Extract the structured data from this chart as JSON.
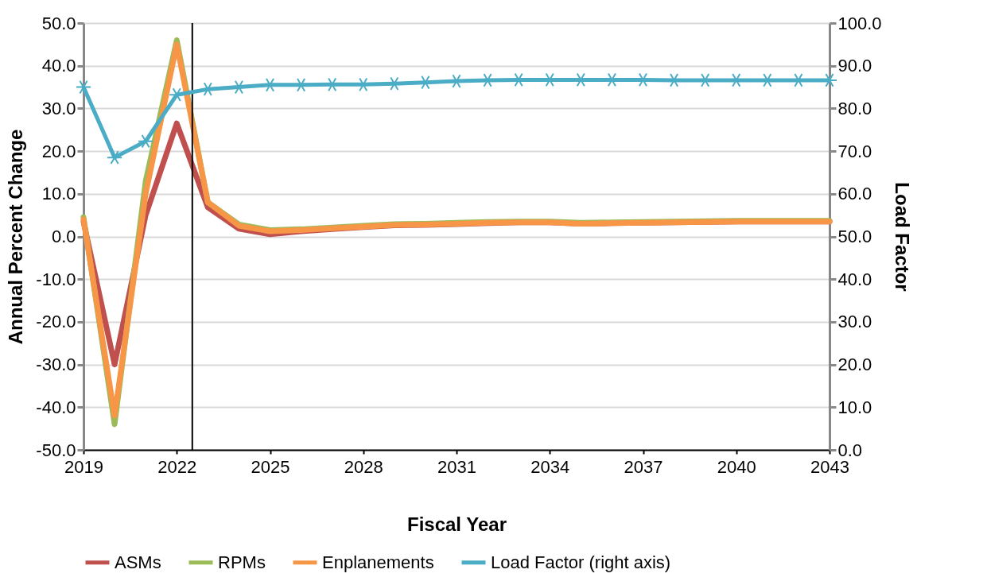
{
  "chart_data": {
    "type": "line",
    "xlabel": "Fiscal Year",
    "ylabel": "Annual Percent Change",
    "y2label": "Load Factor",
    "x": [
      2019,
      2020,
      2021,
      2022,
      2023,
      2024,
      2025,
      2026,
      2027,
      2028,
      2029,
      2030,
      2031,
      2032,
      2033,
      2034,
      2035,
      2036,
      2037,
      2038,
      2039,
      2040,
      2041,
      2042,
      2043
    ],
    "series": [
      {
        "name": "ASMs",
        "color": "#c0504d",
        "values": [
          3.5,
          -30,
          5,
          26.5,
          6.8,
          1.8,
          0.5,
          1.2,
          1.7,
          2.2,
          2.6,
          2.7,
          2.9,
          3.1,
          3.3,
          3.3,
          3.0,
          3.1,
          3.2,
          3.3,
          3.4,
          3.5,
          3.5,
          3.5,
          3.5
        ]
      },
      {
        "name": "RPMs",
        "color": "#9bbb59",
        "values": [
          4.5,
          -44,
          13,
          46,
          8,
          2.8,
          1.5,
          1.7,
          2.1,
          2.5,
          2.9,
          3.0,
          3.2,
          3.4,
          3.5,
          3.5,
          3.2,
          3.3,
          3.4,
          3.5,
          3.6,
          3.7,
          3.7,
          3.7,
          3.7
        ]
      },
      {
        "name": "Enplanements",
        "color": "#f79646",
        "values": [
          4,
          -42,
          10,
          45,
          8,
          2.5,
          1.2,
          1.5,
          1.9,
          2.3,
          2.7,
          2.8,
          3.0,
          3.2,
          3.3,
          3.3,
          3.0,
          3.1,
          3.2,
          3.3,
          3.4,
          3.5,
          3.5,
          3.5,
          3.5
        ]
      },
      {
        "name": "Load Factor (right axis)",
        "color": "#4bacc6",
        "axis": "y2",
        "marker": "cross",
        "values": [
          85,
          68.5,
          72.3,
          83.2,
          84.5,
          85,
          85.5,
          85.5,
          85.6,
          85.6,
          85.8,
          86.1,
          86.4,
          86.6,
          86.7,
          86.7,
          86.7,
          86.7,
          86.7,
          86.6,
          86.6,
          86.6,
          86.6,
          86.6,
          86.6
        ]
      }
    ],
    "xlim": [
      2019,
      2043
    ],
    "xticks": [
      2019,
      2022,
      2025,
      2028,
      2031,
      2034,
      2037,
      2040,
      2043
    ],
    "ylim": [
      -50,
      50
    ],
    "yticks": [
      {
        "value": -50,
        "label": "-50.0"
      },
      {
        "value": -40,
        "label": "-40.0"
      },
      {
        "value": -30,
        "label": "-30.0"
      },
      {
        "value": -20,
        "label": "-20.0"
      },
      {
        "value": -10,
        "label": "-10.0"
      },
      {
        "value": 0,
        "label": "0.0"
      },
      {
        "value": 10,
        "label": "10.0"
      },
      {
        "value": 20,
        "label": "20.0"
      },
      {
        "value": 30,
        "label": "30.0"
      },
      {
        "value": 40,
        "label": "40.0"
      },
      {
        "value": 50,
        "label": "50.0"
      }
    ],
    "y2lim": [
      0,
      100
    ],
    "y2ticks": [
      {
        "value": 0,
        "label": "0.0"
      },
      {
        "value": 10,
        "label": "10.0"
      },
      {
        "value": 20,
        "label": "20.0"
      },
      {
        "value": 30,
        "label": "30.0"
      },
      {
        "value": 40,
        "label": "40.0"
      },
      {
        "value": 50,
        "label": "50.0"
      },
      {
        "value": 60,
        "label": "60.0"
      },
      {
        "value": 70,
        "label": "70.0"
      },
      {
        "value": 80,
        "label": "80.0"
      },
      {
        "value": 90,
        "label": "90.0"
      },
      {
        "value": 100,
        "label": "100.0"
      }
    ],
    "ref_lines": [
      {
        "axis": "x",
        "value": 2022.5,
        "color": "#000000"
      }
    ],
    "grid": "y",
    "legend": "bottom"
  }
}
